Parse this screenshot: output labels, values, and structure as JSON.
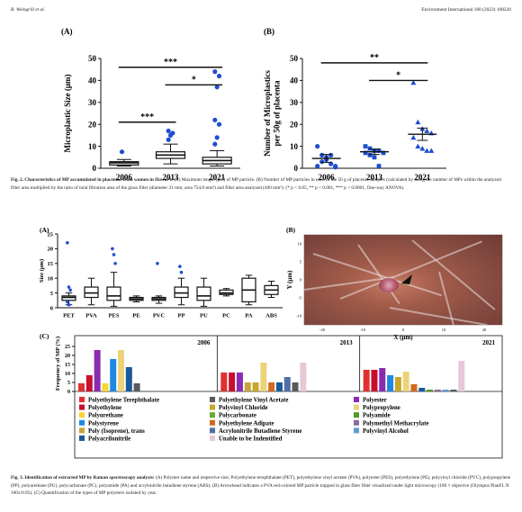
{
  "header": {
    "authors": "R. Weingrill et al.",
    "journal": "Environment International 180 (2023) 108220"
  },
  "fig2": {
    "panel_a_label": "(A)",
    "panel_b_label": "(B)",
    "caption": {
      "bold": "Fig. 2. Characteristics of MP accumulated in placentas from women in Hawaiʻi:",
      "text": " (A) Maximum length (μm) of MP particle. (B) Number of MP particles in each of the 50 g of placenta samples (calculated by using the number of MPs within the analyzed filter area multiplied by the ratio of total filtration area of the glass filter (diameter 31 mm, area 754.8 mm²) and filter area analyzed (400 mm²). (* p < 0.05, ** p < 0.001, *** p < 0.0001, One-way ANOVA)."
    }
  },
  "fig3": {
    "panel_a_label": "(A)",
    "panel_b_label": "(B)",
    "panel_c_label": "(C)",
    "caption": {
      "bold": "Fig. 3. Identification of extracted MP by Raman spectroscopy analysis:",
      "text": " (A) Polymer name and respective size; Polyethylene terephthalate (PET), polyethylene vinyl acetate (PVA), polyester (PES), polyethylene (PE), polyvinyl chloride (PVC), polypropylene (PP), polyurethane (PU), polycarbonate (PC), polyamide (PA) and acrylonitrile butadiene styrene (ABS). (B) Arrowhead indicates a PVA red-colored MP particle trapped in glass fiber filter visualized under light microscopy (100 × objective (Olympus PlanFL N 100x/0.95). (C) Quantification of the types of MP polymers isolated by year."
    }
  },
  "chart_data": [
    {
      "id": "fig2a",
      "type": "box",
      "ylabel": "Microplastic Size (μm)",
      "ylim": [
        0,
        50
      ],
      "yticks": [
        0,
        10,
        20,
        30,
        40,
        50
      ],
      "categories": [
        "2006",
        "2013",
        "2021"
      ],
      "boxes": [
        {
          "whisker_low": 1,
          "q1": 1.5,
          "median": 2.5,
          "q3": 3,
          "whisker_high": 4,
          "outliers": [
            7.5
          ]
        },
        {
          "whisker_low": 2,
          "q1": 4.5,
          "median": 6,
          "q3": 7.5,
          "whisker_high": 11,
          "outliers": [
            13,
            15,
            16,
            17
          ]
        },
        {
          "whisker_low": 1,
          "q1": 2,
          "median": 3.5,
          "q3": 5,
          "whisker_high": 8,
          "outliers": [
            11,
            14,
            20,
            22,
            37,
            42,
            44
          ]
        }
      ],
      "significance": [
        {
          "from": "2006",
          "to": "2021",
          "label": "***",
          "y": 46
        },
        {
          "from": "2013",
          "to": "2021",
          "label": "*",
          "y": 38
        },
        {
          "from": "2006",
          "to": "2013",
          "label": "***",
          "y": 21
        }
      ],
      "colors": {
        "outlier": "#1f4fcf",
        "box": "#111111"
      }
    },
    {
      "id": "fig2b",
      "type": "scatter",
      "ylabel": "Number of Microplastics per 50g of placenta",
      "ylim": [
        0,
        50
      ],
      "yticks": [
        0,
        10,
        20,
        30,
        40,
        50
      ],
      "categories": [
        "2006",
        "2013",
        "2021"
      ],
      "series": [
        {
          "x": "2006",
          "marker": "circle",
          "mean": 4.5,
          "sd": 1.8,
          "values": [
            10,
            6,
            4,
            2,
            0.5,
            1,
            3,
            5,
            6,
            1
          ]
        },
        {
          "x": "2013",
          "marker": "square",
          "mean": 7.5,
          "sd": 1.2,
          "values": [
            10,
            9,
            8,
            8,
            7,
            7,
            6,
            5,
            1
          ]
        },
        {
          "x": "2021",
          "marker": "triangle",
          "mean": 15.5,
          "sd": 2.8,
          "values": [
            39,
            21,
            18,
            17,
            16,
            14,
            10,
            9,
            8,
            8
          ]
        }
      ],
      "significance": [
        {
          "from": "2006",
          "to": "2021",
          "label": "**",
          "y": 48
        },
        {
          "from": "2013",
          "to": "2021",
          "label": "*",
          "y": 40
        }
      ],
      "colors": {
        "marker": "#1f4fcf"
      }
    },
    {
      "id": "fig3a",
      "type": "box",
      "ylabel": "Size (μm)",
      "ylim": [
        0,
        25
      ],
      "yticks": [
        0,
        5,
        10,
        15,
        20,
        25
      ],
      "categories": [
        "PET",
        "PVA",
        "PES",
        "PE",
        "PVC",
        "PP",
        "PU",
        "PC",
        "PA",
        "ABS"
      ],
      "boxes": [
        {
          "whisker_low": 1,
          "q1": 2.5,
          "median": 3.5,
          "q3": 4,
          "whisker_high": 5,
          "outliers": [
            22,
            7,
            6,
            2,
            1
          ]
        },
        {
          "whisker_low": 1,
          "q1": 3.5,
          "median": 5,
          "q3": 7,
          "whisker_high": 10,
          "outliers": []
        },
        {
          "whisker_low": 0.5,
          "q1": 2.5,
          "median": 4,
          "q3": 7,
          "whisker_high": 12,
          "outliers": [
            20,
            18,
            15
          ]
        },
        {
          "whisker_low": 2,
          "q1": 2.5,
          "median": 3,
          "q3": 3.5,
          "whisker_high": 4,
          "outliers": []
        },
        {
          "whisker_low": 1.5,
          "q1": 2.5,
          "median": 3,
          "q3": 3.5,
          "whisker_high": 4,
          "outliers": [
            15
          ]
        },
        {
          "whisker_low": 1,
          "q1": 3.5,
          "median": 5,
          "q3": 7,
          "whisker_high": 10,
          "outliers": [
            14,
            12
          ]
        },
        {
          "whisker_low": 0.5,
          "q1": 2.5,
          "median": 4,
          "q3": 7,
          "whisker_high": 10,
          "outliers": []
        },
        {
          "whisker_low": 4,
          "q1": 4.5,
          "median": 5,
          "q3": 6,
          "whisker_high": 6.5,
          "outliers": []
        },
        {
          "whisker_low": 1,
          "q1": 2,
          "median": 6,
          "q3": 10,
          "whisker_high": 11,
          "outliers": []
        },
        {
          "whisker_low": 3.5,
          "q1": 4.5,
          "median": 6,
          "q3": 7.5,
          "whisker_high": 9,
          "outliers": []
        }
      ],
      "colors": {
        "outlier": "#1f4fcf",
        "box": "#111111"
      }
    },
    {
      "id": "fig3b",
      "type": "image-axes",
      "xlabel": "X (μm)",
      "ylabel": "Y (μm)",
      "xticks": [
        "-20",
        "-10",
        "0",
        "10",
        "20"
      ],
      "yticks": [
        "10",
        "5",
        "0",
        "-5",
        "-10"
      ]
    },
    {
      "id": "fig3c",
      "type": "bar",
      "ylabel": "Frequency of MP (%)",
      "ylim": [
        0,
        25
      ],
      "yticks": [
        0,
        5,
        10,
        15,
        20,
        25
      ],
      "groups": [
        "2006",
        "2013",
        "2021"
      ],
      "categories": [
        "Polyethylene Terephthalate",
        "Polyethylene",
        "Polyurethane",
        "Polystyrene",
        "Poly (Isoprene), trans",
        "Polyacrilonitrile",
        "Polyethylene Vinyl Acetate",
        "Polyvinyl Chloride",
        "Polycarbonate",
        "Polyethylene Adipate",
        "Acrylonitrile Butadiene Styrene",
        "Unable to be Indentified",
        "Polyester",
        "Polypropylene",
        "Polyamide",
        "Polymethyl Methacrylate",
        "Polyvinyl Alcohol"
      ],
      "colors": [
        "#e03030",
        "#c8102e",
        "#f5d630",
        "#1e88e5",
        "#c8a43e",
        "#1a5a9a",
        "#5a5a5a",
        "#c8a82c",
        "#6aaa2e",
        "#d2691e",
        "#4f6fa5",
        "#e8c8d8",
        "#8a2bb2",
        "#ecd27a",
        "#4e9a2a",
        "#8a6d9a",
        "#5b9bd5"
      ],
      "bars": {
        "2006": [
          {
            "c": 0,
            "v": 4.5
          },
          {
            "c": 1,
            "v": 9
          },
          {
            "c": 12,
            "v": 23
          },
          {
            "c": 2,
            "v": 4.5
          },
          {
            "c": 3,
            "v": 18
          },
          {
            "c": 13,
            "v": 23
          },
          {
            "c": 5,
            "v": 13.5
          },
          {
            "c": 6,
            "v": 4.5
          }
        ],
        "2013": [
          {
            "c": 0,
            "v": 10.5
          },
          {
            "c": 1,
            "v": 10.5
          },
          {
            "c": 12,
            "v": 10.5
          },
          {
            "c": 4,
            "v": 5
          },
          {
            "c": 7,
            "v": 5
          },
          {
            "c": 13,
            "v": 16
          },
          {
            "c": 9,
            "v": 5
          },
          {
            "c": 5,
            "v": 5
          },
          {
            "c": 10,
            "v": 8
          },
          {
            "c": 6,
            "v": 5
          },
          {
            "c": 11,
            "v": 16
          }
        ],
        "2021": [
          {
            "c": 0,
            "v": 12
          },
          {
            "c": 1,
            "v": 12
          },
          {
            "c": 12,
            "v": 13
          },
          {
            "c": 3,
            "v": 9
          },
          {
            "c": 7,
            "v": 8
          },
          {
            "c": 13,
            "v": 11
          },
          {
            "c": 9,
            "v": 4
          },
          {
            "c": 5,
            "v": 2
          },
          {
            "c": 14,
            "v": 1
          },
          {
            "c": 15,
            "v": 1
          },
          {
            "c": 16,
            "v": 1
          },
          {
            "c": 6,
            "v": 1
          },
          {
            "c": 11,
            "v": 17
          }
        ]
      }
    }
  ]
}
